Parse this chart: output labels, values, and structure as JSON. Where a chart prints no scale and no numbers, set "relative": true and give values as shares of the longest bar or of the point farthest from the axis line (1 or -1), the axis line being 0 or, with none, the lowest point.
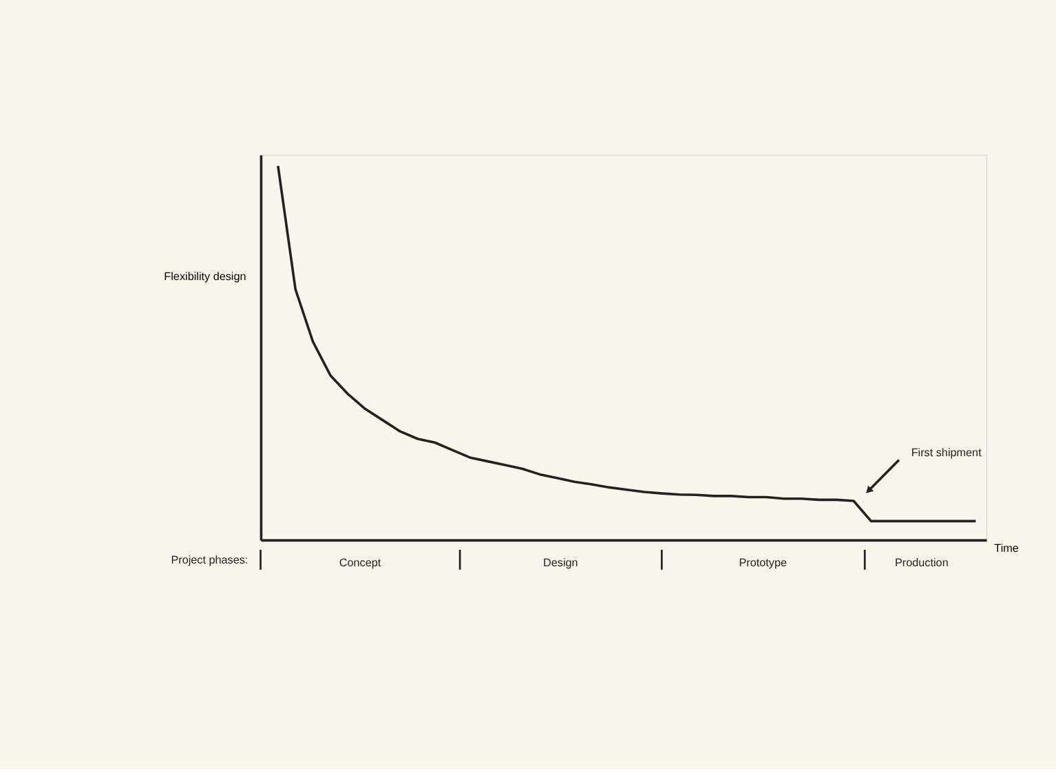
{
  "chart_data": {
    "type": "line",
    "relative": true,
    "xlabel": "Time",
    "ylabel": "Flexibility design",
    "categories": [
      null,
      null,
      null,
      null,
      null,
      null,
      null,
      null,
      null,
      null,
      null,
      null,
      null,
      null,
      null,
      null,
      null,
      null,
      null,
      null,
      null,
      null,
      null,
      null,
      null,
      null,
      null,
      null,
      null,
      null,
      null,
      null,
      null,
      null,
      null,
      null,
      null,
      null,
      null,
      null,
      null
    ],
    "series": [
      {
        "color": "#222222",
        "values": [
          1.0,
          0.67,
          0.53,
          0.44,
          0.39,
          0.35,
          0.32,
          0.29,
          0.27,
          0.26,
          0.24,
          0.22,
          0.21,
          0.2,
          0.19,
          0.175,
          0.165,
          0.155,
          0.148,
          0.14,
          0.134,
          0.128,
          0.124,
          0.121,
          0.12,
          0.117,
          0.117,
          0.114,
          0.114,
          0.11,
          0.11,
          0.107,
          0.107,
          0.104,
          0.05,
          0.05,
          0.05,
          0.05,
          0.05,
          0.05,
          0.05
        ]
      }
    ],
    "annotations": [
      "Project phases:",
      "Concept",
      "Design",
      "Prototype",
      "Production",
      "First shipment"
    ],
    "grid": false,
    "marker": "none",
    "line_style": "solid"
  }
}
